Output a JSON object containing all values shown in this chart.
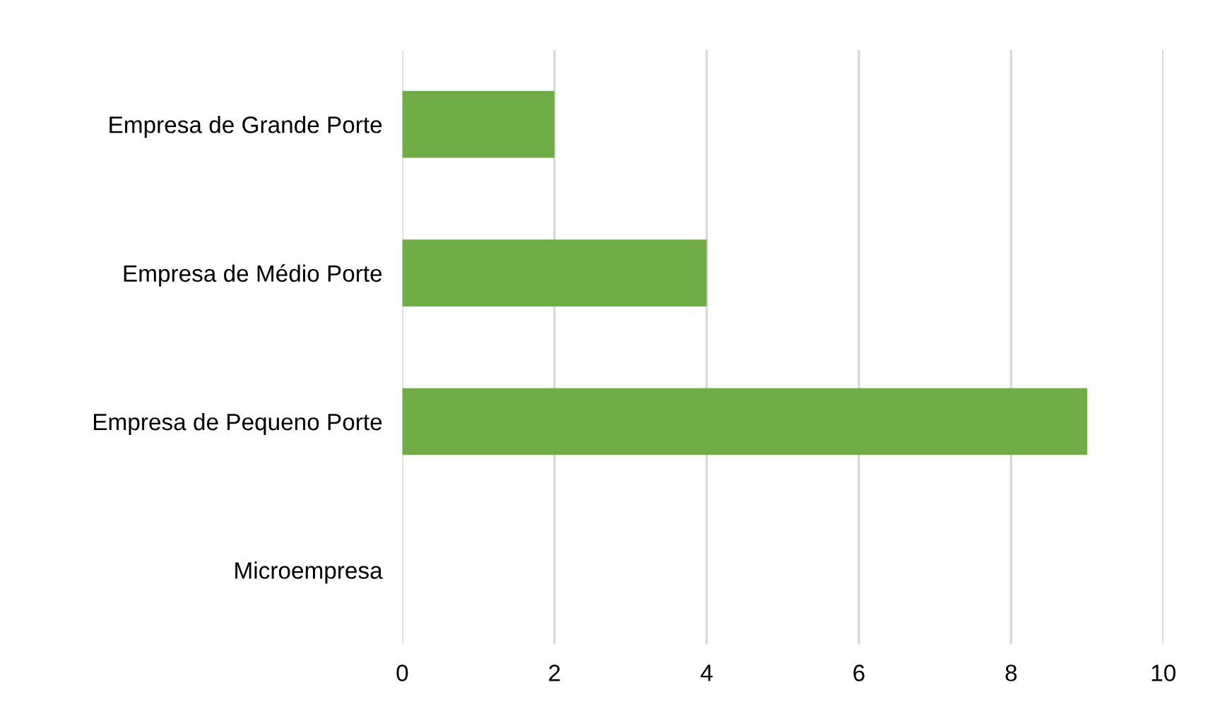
{
  "chart_data": {
    "type": "bar",
    "orientation": "horizontal",
    "categories": [
      "Empresa de Grande Porte",
      "Empresa de Médio Porte",
      "Empresa de Pequeno Porte",
      "Microempresa"
    ],
    "values": [
      2,
      4,
      9,
      0
    ],
    "color": "#70ad47",
    "xlim": [
      0,
      10
    ],
    "xticks": [
      0,
      2,
      4,
      6,
      8,
      10
    ],
    "grid": "x",
    "legend": false
  }
}
